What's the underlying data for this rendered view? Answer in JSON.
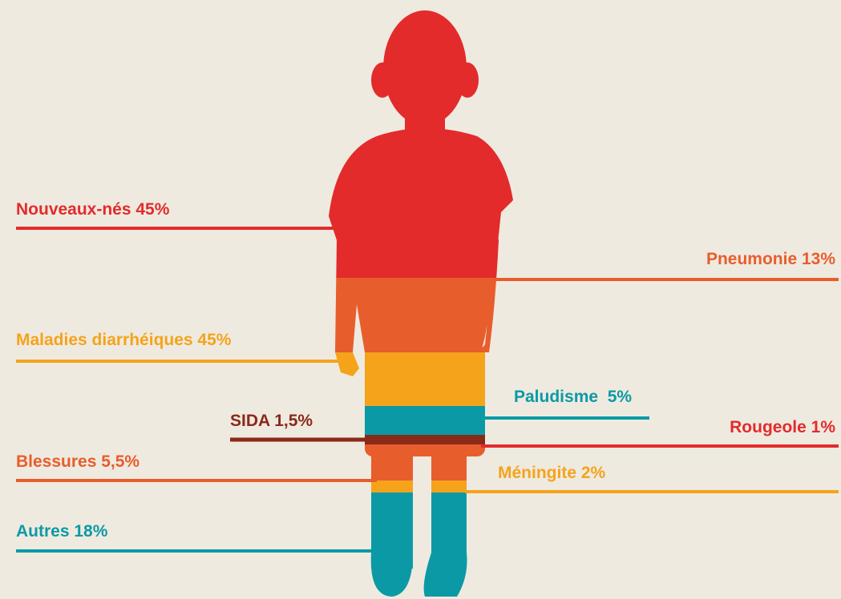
{
  "labels": {
    "newborns": "Nouveaux-nés 45%",
    "pneumonia": "Pneumonie 13%",
    "diarrhea": "Maladies diarrhéiques 45%",
    "malaria": "Paludisme  5%",
    "aids": "SIDA 1,5%",
    "measles": "Rougeole 1%",
    "injuries": "Blessures 5,5%",
    "meningitis": "Méningite 2%",
    "others": "Autres 18%"
  }
}
